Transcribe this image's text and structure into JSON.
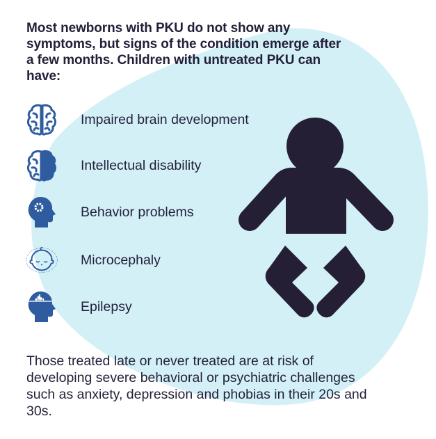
{
  "intro": "Most newborns with PKU do not show any symptoms, but signs of the condition emerge after a few months. Children with untreated PKU can have:",
  "symptoms": [
    {
      "label": "Impaired brain development",
      "icon": "brain-outline-icon"
    },
    {
      "label": "Intellectual disability",
      "icon": "half-brain-icon"
    },
    {
      "label": "Behavior problems",
      "icon": "head-gear-icon"
    },
    {
      "label": "Microcephaly",
      "icon": "baby-face-icon"
    },
    {
      "label": "Epilepsy",
      "icon": "head-brainwave-icon"
    }
  ],
  "outro": "Those treated late or never treated are at risk of developing severe behavioral or psychiatric challenges such as anxiety, depression and phobias in their 20s and 30s.",
  "illustration": "baby-icon",
  "colors": {
    "text": "#221f38",
    "icon_blue": "#2f5c9f",
    "blob": "#d3f0f7",
    "baby": "#251f36"
  }
}
